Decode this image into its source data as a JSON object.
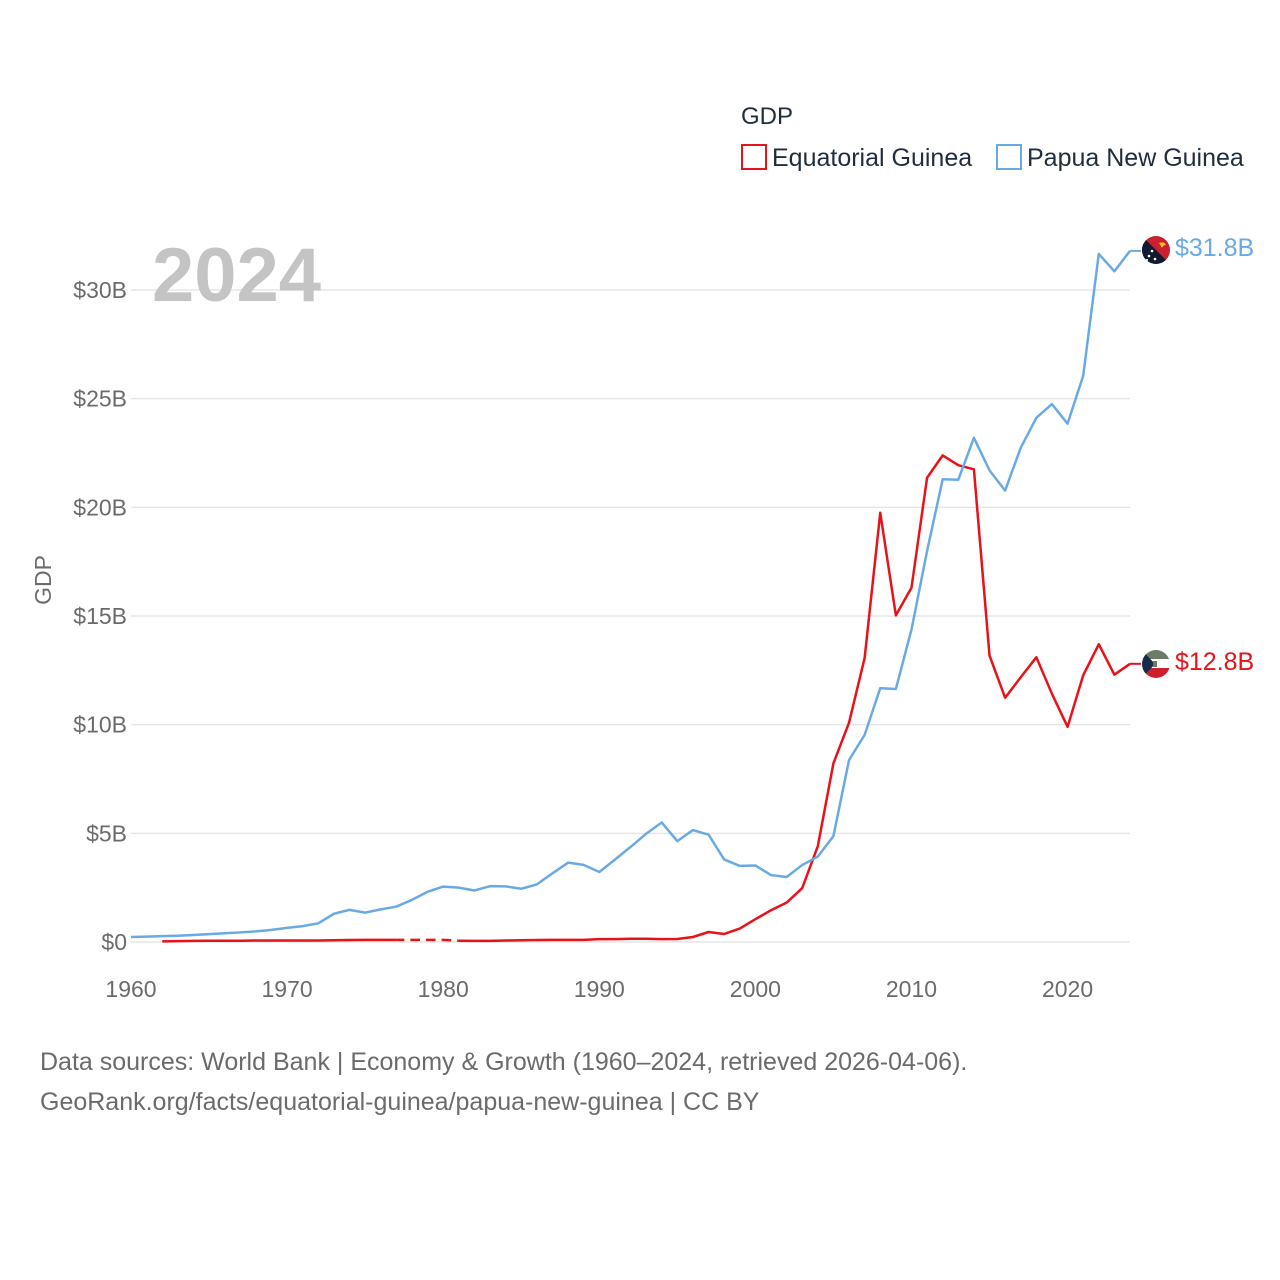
{
  "colors": {
    "equatorial_guinea": "#e8121a",
    "papua_new_guinea": "#6aaae4",
    "grid": "#e6e6e6",
    "year_label": "#c4c4c4"
  },
  "chart_data": {
    "type": "line",
    "title": "",
    "current_year": "2024",
    "legend": {
      "title": "GDP",
      "placement": "top-right"
    },
    "xlabel": "",
    "ylabel": "GDP",
    "xlim": [
      1960,
      2024
    ],
    "ylim": [
      0,
      32
    ],
    "x_ticks": [
      1960,
      1970,
      1980,
      1990,
      2000,
      2010,
      2020
    ],
    "x_tick_labels": [
      "1960",
      "1970",
      "1980",
      "1990",
      "2000",
      "2010",
      "2020"
    ],
    "y_ticks": [
      0,
      5,
      10,
      15,
      20,
      25,
      30
    ],
    "y_tick_labels": [
      "$0",
      "$5B",
      "$10B",
      "$15B",
      "$20B",
      "$25B",
      "$30B"
    ],
    "units": "billions USD",
    "series": [
      {
        "name": "Equatorial Guinea",
        "color": "#e8121a",
        "end_label": "$12.8B",
        "flag_icon": "equatorial-guinea-flag-icon",
        "gap_years": [
          1978,
          1979,
          1980
        ],
        "x": [
          1962,
          1963,
          1964,
          1965,
          1966,
          1967,
          1968,
          1969,
          1970,
          1971,
          1972,
          1973,
          1974,
          1975,
          1976,
          1977,
          1978,
          1979,
          1980,
          1981,
          1982,
          1983,
          1984,
          1985,
          1986,
          1987,
          1988,
          1989,
          1990,
          1991,
          1992,
          1993,
          1994,
          1995,
          1996,
          1997,
          1998,
          1999,
          2000,
          2001,
          2002,
          2003,
          2004,
          2005,
          2006,
          2007,
          2008,
          2009,
          2010,
          2011,
          2012,
          2013,
          2014,
          2015,
          2016,
          2017,
          2018,
          2019,
          2020,
          2021,
          2022,
          2023,
          2024
        ],
        "values": [
          0.03,
          0.04,
          0.05,
          0.06,
          0.06,
          0.06,
          0.07,
          0.07,
          0.07,
          0.07,
          0.07,
          0.08,
          0.09,
          0.1,
          0.1,
          0.1,
          0.1,
          0.1,
          0.1,
          0.06,
          0.05,
          0.05,
          0.07,
          0.08,
          0.09,
          0.1,
          0.1,
          0.1,
          0.13,
          0.13,
          0.15,
          0.15,
          0.13,
          0.14,
          0.23,
          0.46,
          0.37,
          0.62,
          1.05,
          1.46,
          1.81,
          2.48,
          4.41,
          8.22,
          10.09,
          13.07,
          19.75,
          15.03,
          16.3,
          21.36,
          22.39,
          21.94,
          21.75,
          13.18,
          11.24,
          12.18,
          13.1,
          11.42,
          9.9,
          12.27,
          13.7,
          12.3,
          12.8
        ]
      },
      {
        "name": "Papua New Guinea",
        "color": "#6aaae4",
        "end_label": "$31.8B",
        "flag_icon": "papua-new-guinea-flag-icon",
        "gap_years": [],
        "x": [
          1960,
          1961,
          1962,
          1963,
          1964,
          1965,
          1966,
          1967,
          1968,
          1969,
          1970,
          1971,
          1972,
          1973,
          1974,
          1975,
          1976,
          1977,
          1978,
          1979,
          1980,
          1981,
          1982,
          1983,
          1984,
          1985,
          1986,
          1987,
          1988,
          1989,
          1990,
          1991,
          1992,
          1993,
          1994,
          1995,
          1996,
          1997,
          1998,
          1999,
          2000,
          2001,
          2002,
          2003,
          2004,
          2005,
          2006,
          2007,
          2008,
          2009,
          2010,
          2011,
          2012,
          2013,
          2014,
          2015,
          2016,
          2017,
          2018,
          2019,
          2020,
          2021,
          2022,
          2023,
          2024
        ],
        "values": [
          0.23,
          0.25,
          0.27,
          0.29,
          0.32,
          0.36,
          0.4,
          0.44,
          0.49,
          0.56,
          0.65,
          0.73,
          0.86,
          1.3,
          1.48,
          1.35,
          1.5,
          1.63,
          1.94,
          2.31,
          2.55,
          2.5,
          2.37,
          2.57,
          2.56,
          2.45,
          2.65,
          3.16,
          3.65,
          3.55,
          3.22,
          3.79,
          4.37,
          4.98,
          5.5,
          4.64,
          5.15,
          4.94,
          3.8,
          3.5,
          3.52,
          3.08,
          2.99,
          3.54,
          3.93,
          4.87,
          8.37,
          9.53,
          11.68,
          11.64,
          14.37,
          17.99,
          21.29,
          21.27,
          23.2,
          21.7,
          20.77,
          22.74,
          24.12,
          24.75,
          23.85,
          26.05,
          31.66,
          30.86,
          31.8
        ]
      }
    ]
  },
  "footer": {
    "line1": "Data sources: World Bank | Economy & Growth (1960–2024, retrieved 2026-04-06).",
    "line2": "GeoRank.org/facts/equatorial-guinea/papua-new-guinea | CC BY"
  }
}
